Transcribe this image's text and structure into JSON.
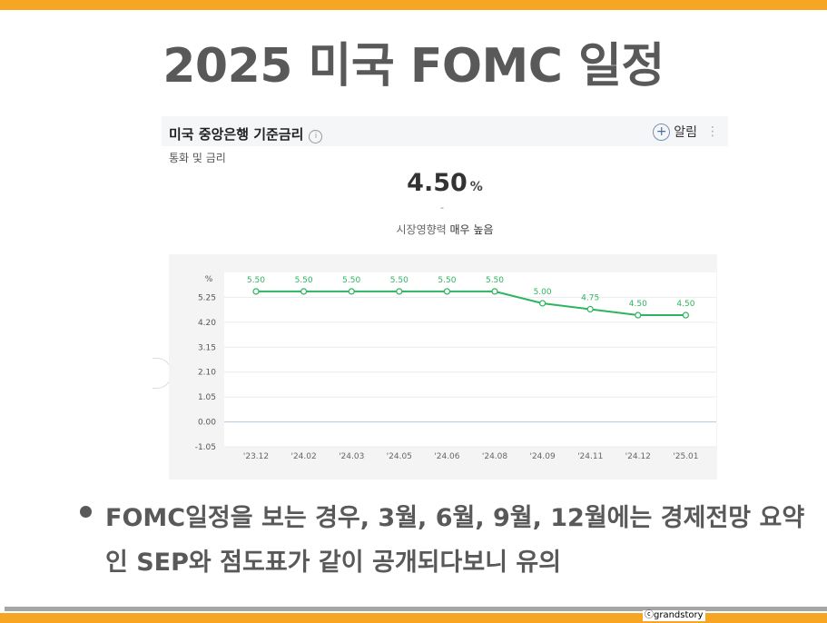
{
  "slide": {
    "title": "2025 미국 FOMC 일정",
    "bullet": "FOMC일정을 보는 경우, 3월, 6월, 9월, 12월에는 경제전망 요약인 SEP와 점도표가 같이 공개되다보니 유의",
    "credit": "ⓒgrandstory",
    "accent_color": "#f6a623"
  },
  "widget": {
    "title": "미국 중앙은행 기준금리",
    "info_icon": "i",
    "alarm_label": "알림",
    "category": "통화 및 금리",
    "rate_value": "4.50",
    "rate_unit": "%",
    "rate_change": "-",
    "impact_label": "시장영향력",
    "impact_value": "매우 높음"
  },
  "chart_data": {
    "type": "line",
    "ylabel": "%",
    "yticks": [
      "5.25",
      "4.20",
      "3.15",
      "2.10",
      "1.05",
      "0.00",
      "-1.05"
    ],
    "ytick_values": [
      5.25,
      4.2,
      3.15,
      2.1,
      1.05,
      0.0,
      -1.05
    ],
    "ylim": [
      -1.05,
      6.3
    ],
    "categories": [
      "'23.12",
      "'24.02",
      "'24.03",
      "'24.05",
      "'24.06",
      "'24.08",
      "'24.09",
      "'24.11",
      "'24.12",
      "'25.01"
    ],
    "values": [
      5.5,
      5.5,
      5.5,
      5.5,
      5.5,
      5.5,
      5.0,
      4.75,
      4.5,
      4.5
    ],
    "data_labels": [
      "5.50",
      "5.50",
      "5.50",
      "5.50",
      "5.50",
      "5.50",
      "5.00",
      "4.75",
      "4.50",
      "4.50"
    ],
    "line_color": "#2db45f",
    "grid": true
  }
}
